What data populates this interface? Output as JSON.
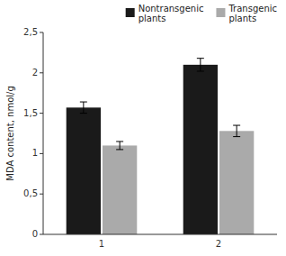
{
  "chart_data": {
    "type": "bar",
    "categories": [
      "1",
      "2"
    ],
    "series": [
      {
        "name": "Nontransgenic\nplants",
        "color": "#1a1a1a",
        "values": [
          1.57,
          2.1
        ],
        "errors": [
          0.07,
          0.08
        ]
      },
      {
        "name": "Transgenic\nplants",
        "color": "#aaaaaa",
        "values": [
          1.1,
          1.28
        ],
        "errors": [
          0.05,
          0.07
        ]
      }
    ],
    "ylabel": "MDA content, nmol/g",
    "ylim": [
      0,
      2.5
    ],
    "yticks": [
      0,
      {
        "value": 0.5,
        "label": "0,5"
      },
      1,
      {
        "value": 1.5,
        "label": "1,5"
      },
      2,
      {
        "value": 2.5,
        "label": "2,5"
      }
    ],
    "legend": "upper right",
    "grid": false
  }
}
